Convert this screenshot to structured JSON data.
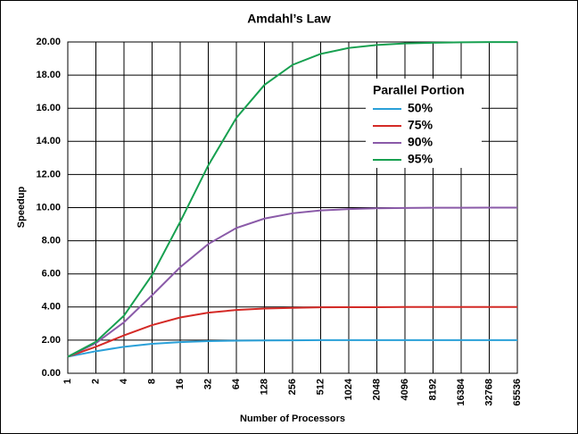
{
  "chart_data": {
    "type": "line",
    "title": "Amdahl’s Law",
    "x_label": "Number of Processors",
    "y_label": "Speedup",
    "categories": [
      "1",
      "2",
      "4",
      "8",
      "16",
      "32",
      "64",
      "128",
      "256",
      "512",
      "1024",
      "2048",
      "4096",
      "8192",
      "16384",
      "32768",
      "65536"
    ],
    "ylim": [
      0,
      20
    ],
    "yticks": [
      {
        "value": 0,
        "label": "0.00"
      },
      {
        "value": 2,
        "label": "2.00"
      },
      {
        "value": 4,
        "label": "4.00"
      },
      {
        "value": 6,
        "label": "6.00"
      },
      {
        "value": 8,
        "label": "8.00"
      },
      {
        "value": 10,
        "label": "10.00"
      },
      {
        "value": 12,
        "label": "12.00"
      },
      {
        "value": 14,
        "label": "14.00"
      },
      {
        "value": 16,
        "label": "16.00"
      },
      {
        "value": 18,
        "label": "18.00"
      },
      {
        "value": 20,
        "label": "20.00"
      }
    ],
    "grid": true,
    "legend_title": "Parallel Portion",
    "legend_position": "upper right",
    "series": [
      {
        "name": "50%",
        "color": "#2aa0d8",
        "values": [
          1,
          1.33,
          1.6,
          1.78,
          1.88,
          1.94,
          1.97,
          1.98,
          1.99,
          2.0,
          2.0,
          2.0,
          2.0,
          2.0,
          2.0,
          2.0,
          2.0
        ]
      },
      {
        "name": "75%",
        "color": "#d42a26",
        "values": [
          1,
          1.6,
          2.29,
          2.91,
          3.37,
          3.66,
          3.82,
          3.91,
          3.95,
          3.98,
          3.99,
          3.99,
          4.0,
          4.0,
          4.0,
          4.0,
          4.0
        ]
      },
      {
        "name": "90%",
        "color": "#8a5aa8",
        "values": [
          1,
          1.82,
          3.08,
          4.71,
          6.4,
          7.8,
          8.77,
          9.34,
          9.66,
          9.83,
          9.91,
          9.96,
          9.98,
          9.99,
          9.99,
          10.0,
          10.0
        ]
      },
      {
        "name": "95%",
        "color": "#17a050",
        "values": [
          1,
          1.9,
          3.48,
          5.93,
          9.14,
          12.55,
          15.42,
          17.41,
          18.62,
          19.28,
          19.64,
          19.82,
          19.91,
          19.95,
          19.98,
          19.99,
          19.99
        ]
      }
    ]
  }
}
